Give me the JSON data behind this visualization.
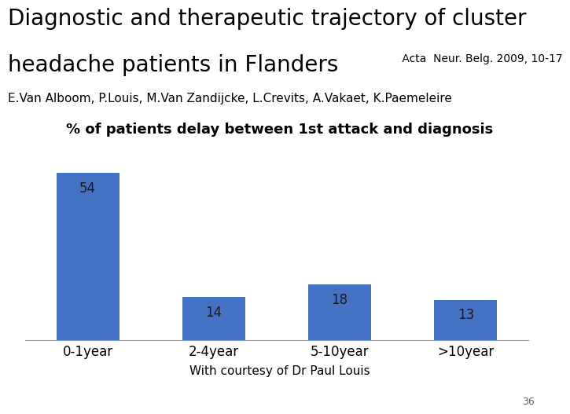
{
  "title_line1": "Diagnostic and therapeutic trajectory of cluster",
  "title_line2": "headache patients in Flanders",
  "title_acta": " Acta  Neur. Belg. 2009, 10-17",
  "subtitle_authors": "E.Van Alboom, P.Louis, M.Van Zandijcke, L.Crevits, A.Vakaet, K.Paemeleire",
  "chart_title": "% of patients delay between 1st attack and diagnosis",
  "categories": [
    "0-1year",
    "2-4year",
    "5-10year",
    ">10year"
  ],
  "values": [
    54,
    14,
    18,
    13
  ],
  "bar_color": "#4472C4",
  "background_color": "#ffffff",
  "footer": "With courtesy of Dr Paul Louis",
  "page_number": "36",
  "title_fontsize": 20,
  "acta_fontsize": 10,
  "authors_fontsize": 11,
  "chart_title_fontsize": 13,
  "bar_label_fontsize": 12,
  "axis_tick_fontsize": 12,
  "footer_fontsize": 11
}
